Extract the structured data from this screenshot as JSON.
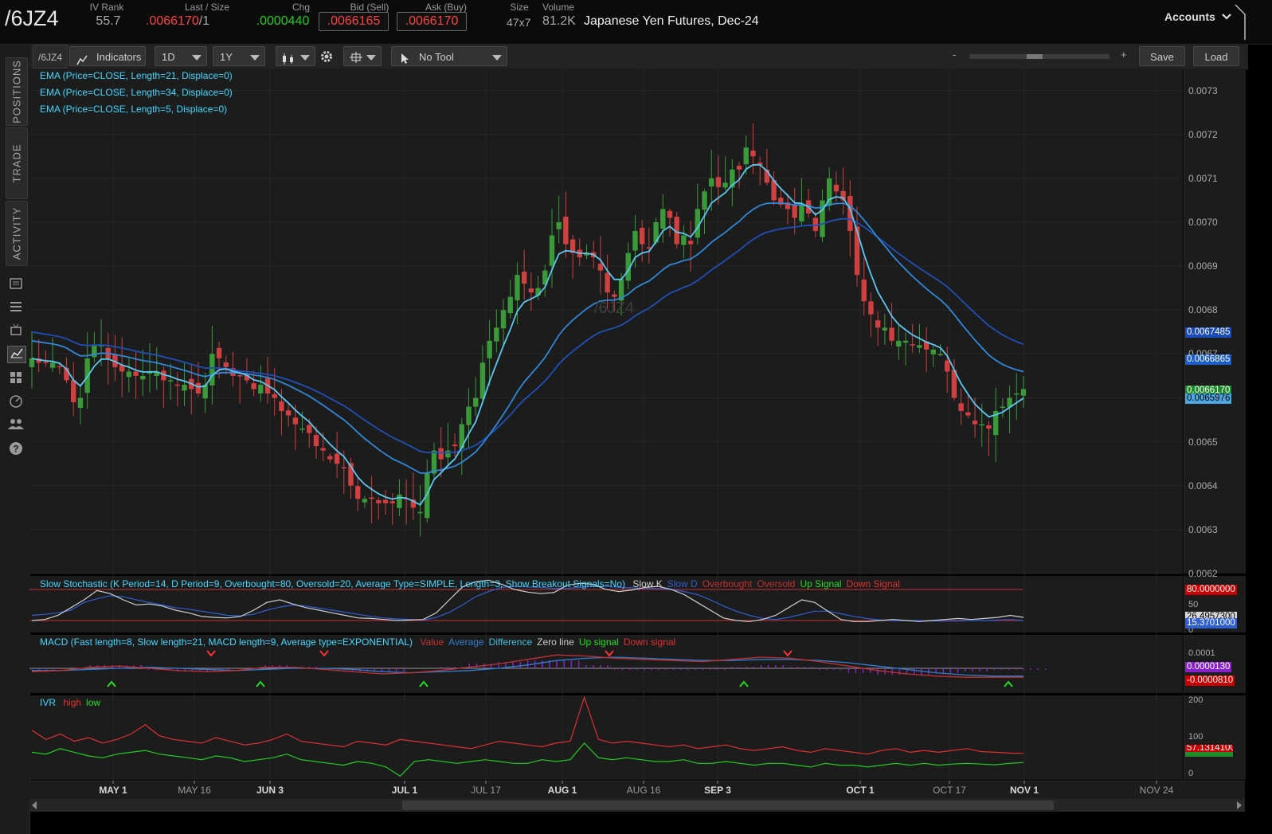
{
  "header": {
    "symbol": "/6JZ4",
    "iv_rank_label": "IV Rank",
    "iv_rank_value": "55.7",
    "last_label": "Last / Size",
    "last_value": ".0066170",
    "last_size": "/1",
    "chg_label": "Chg",
    "chg_value": ".0000440",
    "bid_label": "Bid (Sell)",
    "bid_value": ".0066165",
    "ask_label": "Ask (Buy)",
    "ask_value": ".0066170",
    "size_label": "Size",
    "size_value": "47x7",
    "volume_label": "Volume",
    "volume_value": "81.2K",
    "description": "Japanese Yen Futures, Dec-24",
    "accounts_label": "Accounts"
  },
  "sidebar": {
    "tabs": [
      "POSITIONS",
      "TRADE",
      "ACTIVITY"
    ]
  },
  "toolbar": {
    "symbol_tag": "/6JZ4",
    "indicators_label": "Indicators",
    "aggregation": "1D",
    "timeframe": "1Y",
    "tool_label": "No Tool",
    "zoom_minus": "-",
    "zoom_plus": "+",
    "save_label": "Save",
    "load_label": "Load"
  },
  "price_pane": {
    "studies": [
      "EMA (Price=CLOSE, Length=21, Displace=0)",
      "EMA (Price=CLOSE, Length=34, Displace=0)",
      "EMA (Price=CLOSE, Length=5, Displace=0)"
    ],
    "watermark": "/6JZ4",
    "axis_ticks": [
      "0.0073",
      "0.0072",
      "0.0071",
      "0.0070",
      "0.0069",
      "0.0068",
      "0.0067",
      "0.0066",
      "0.0065",
      "0.0064",
      "0.0063",
      "0.0062"
    ],
    "price_labels": [
      {
        "text": "0.0067485",
        "bg": "#1b4bb8",
        "fg": "#ffffff"
      },
      {
        "text": "0.0066865",
        "bg": "#1b5ec9",
        "fg": "#ffffff"
      },
      {
        "text": "0.0066170",
        "bg": "#1e8c2b",
        "fg": "#ffffff"
      },
      {
        "text": "0.0065976",
        "bg": "#4aa7e0",
        "fg": "#000000"
      }
    ]
  },
  "stochastic_pane": {
    "title": "Slow Stochastic (K Period=14, D Period=9, Overbought=80, Oversold=20, Average Type=SIMPLE, Length=3, Show Breakout Signals=No)",
    "legend": [
      {
        "text": "Slow K",
        "color": "#d0d0d0"
      },
      {
        "text": "Slow D",
        "color": "#2f5fd0"
      },
      {
        "text": "Overbought",
        "color": "#c43030"
      },
      {
        "text": "Oversold",
        "color": "#c43030"
      },
      {
        "text": "Up Signal",
        "color": "#22dd22"
      },
      {
        "text": "Down Signal",
        "color": "#e03030"
      }
    ],
    "axis_ticks": [
      "50",
      "0"
    ],
    "labels": [
      {
        "text": "80.0000000",
        "bg": "#cc0000",
        "fg": "#ffffff"
      },
      {
        "text": "26.4957300",
        "bg": "#d8d8d8",
        "fg": "#000000"
      },
      {
        "text": "15.3701000",
        "bg": "#2f5fd0",
        "fg": "#ffffff"
      }
    ]
  },
  "macd_pane": {
    "title": "MACD (Fast length=8, Slow length=21, MACD length=9, Average type=EXPONENTIAL)",
    "legend": [
      {
        "text": "Value",
        "color": "#c43030"
      },
      {
        "text": "Average",
        "color": "#2f7fd0"
      },
      {
        "text": "Difference",
        "color": "#40c0e0"
      },
      {
        "text": "Zero line",
        "color": "#cccccc"
      },
      {
        "text": "Up signal",
        "color": "#22dd22"
      },
      {
        "text": "Down signal",
        "color": "#e03030"
      }
    ],
    "axis_ticks": [
      "0.0001"
    ],
    "labels": [
      {
        "text": "0.0000130",
        "bg": "#8a22cc",
        "fg": "#ffffff"
      },
      {
        "text": "-0.0000810",
        "bg": "#cc0000",
        "fg": "#ffffff"
      }
    ]
  },
  "ivr_pane": {
    "title": "IVR",
    "legend": [
      {
        "text": "high",
        "color": "#e03030"
      },
      {
        "text": "low",
        "color": "#22dd22"
      }
    ],
    "axis_ticks": [
      "200",
      "100",
      "0"
    ],
    "labels": [
      {
        "text": "57.1314100",
        "bg": "#cc0000",
        "fg": "#ffffff"
      },
      {
        "text": "",
        "bg": "#1e8c2b",
        "fg": "#ffffff"
      }
    ]
  },
  "x_axis": {
    "labels": [
      "MAY 1",
      "MAY 16",
      "JUN 3",
      "JUL 1",
      "JUL 17",
      "AUG 1",
      "AUG 16",
      "SEP 3",
      "OCT 1",
      "OCT 17",
      "NOV 1",
      "NOV 24"
    ],
    "bold": [
      true,
      false,
      true,
      true,
      false,
      true,
      false,
      true,
      true,
      false,
      true,
      false
    ]
  },
  "colors": {
    "up_candle": "#3a9a3a",
    "down_candle": "#d04040",
    "ema5": "#5ac8f0",
    "ema21": "#2f88d8",
    "ema34": "#1f4fb8",
    "accent_green": "#22dd22",
    "accent_red": "#ff3333"
  },
  "chart_data": [
    {
      "type": "candlestick",
      "title": "/6JZ4",
      "y_range": [
        0.0062,
        0.00735
      ],
      "x_labels": [
        "MAY 1",
        "MAY 16",
        "JUN 3",
        "JUL 1",
        "JUL 17",
        "AUG 1",
        "AUG 16",
        "SEP 3",
        "OCT 1",
        "OCT 17",
        "NOV 1",
        "NOV 24"
      ],
      "closes": [
        0.00669,
        0.00668,
        0.00668,
        0.00668,
        0.00667,
        0.00664,
        0.00659,
        0.0066,
        0.00669,
        0.00672,
        0.00672,
        0.00669,
        0.00667,
        0.00666,
        0.00666,
        0.00665,
        0.00665,
        0.00666,
        0.00666,
        0.00664,
        0.00664,
        0.00663,
        0.00663,
        0.00662,
        0.00661,
        0.00663,
        0.0067,
        0.00669,
        0.00667,
        0.00665,
        0.00665,
        0.00664,
        0.00662,
        0.00663,
        0.00661,
        0.0066,
        0.00657,
        0.00656,
        0.00654,
        0.00653,
        0.00652,
        0.00649,
        0.00648,
        0.00646,
        0.00645,
        0.00644,
        0.0064,
        0.00637,
        0.00637,
        0.00637,
        0.00636,
        0.00636,
        0.00636,
        0.00638,
        0.00637,
        0.00635,
        0.00634,
        0.00643,
        0.00648,
        0.00646,
        0.00648,
        0.00649,
        0.00654,
        0.00658,
        0.0066,
        0.00668,
        0.00673,
        0.00676,
        0.0068,
        0.00683,
        0.00688,
        0.00686,
        0.00684,
        0.00685,
        0.00689,
        0.00697,
        0.007,
        0.00695,
        0.00693,
        0.00692,
        0.00693,
        0.00692,
        0.00689,
        0.00684,
        0.00683,
        0.00687,
        0.00693,
        0.00698,
        0.00695,
        0.00694,
        0.007,
        0.00703,
        0.00701,
        0.00695,
        0.00697,
        0.00695,
        0.00703,
        0.00707,
        0.0071,
        0.00708,
        0.00709,
        0.00712,
        0.00712,
        0.00717,
        0.00715,
        0.00713,
        0.00709,
        0.00705,
        0.00704,
        0.00703,
        0.00701,
        0.00704,
        0.00702,
        0.00698,
        0.00705,
        0.0071,
        0.00707,
        0.00705,
        0.00698,
        0.00688,
        0.00682,
        0.00679,
        0.00676,
        0.00676,
        0.00673,
        0.00673,
        0.00673,
        0.00672,
        0.00672,
        0.00671,
        0.00671,
        0.0067,
        0.00666,
        0.0066,
        0.00657,
        0.00656,
        0.00654,
        0.00654,
        0.00653,
        0.00657,
        0.00658,
        0.0066,
        0.00661,
        0.00662
      ],
      "series": [
        {
          "name": "EMA (Price=CLOSE, Length=5, Displace=0)",
          "last": 0.0065976
        },
        {
          "name": "EMA (Price=CLOSE, Length=21, Displace=0)",
          "last": 0.0066865
        },
        {
          "name": "EMA (Price=CLOSE, Length=34, Displace=0)",
          "last": 0.0067485
        }
      ],
      "last_price": 0.006617
    },
    {
      "type": "line",
      "title": "Slow Stochastic (K Period=14, D Period=9, Overbought=80, Oversold=20, Average Type=SIMPLE, Length=3, Show Breakout Signals=No)",
      "y_range": [
        0,
        100
      ],
      "overbought": 80,
      "oversold": 20,
      "slow_k": [
        20,
        22,
        30,
        45,
        60,
        78,
        72,
        60,
        50,
        52,
        48,
        40,
        35,
        28,
        26,
        25,
        28,
        40,
        55,
        60,
        52,
        45,
        40,
        35,
        30,
        25,
        24,
        22,
        20,
        21,
        22,
        35,
        60,
        85,
        95,
        98,
        90,
        80,
        75,
        72,
        74,
        88,
        92,
        90,
        80,
        76,
        79,
        84,
        86,
        80,
        70,
        55,
        40,
        25,
        20,
        18,
        22,
        30,
        45,
        60,
        55,
        38,
        22,
        18,
        18,
        20,
        22,
        20,
        18,
        20,
        22,
        24,
        22,
        24,
        26,
        30,
        26
      ],
      "slow_d": [
        30,
        32,
        35,
        40,
        55,
        62,
        68,
        66,
        60,
        55,
        50,
        45,
        42,
        38,
        34,
        30,
        29,
        32,
        40,
        46,
        50,
        48,
        44,
        40,
        36,
        32,
        28,
        25,
        23,
        22,
        21,
        26,
        36,
        50,
        66,
        76,
        84,
        86,
        85,
        84,
        82,
        82,
        84,
        86,
        86,
        84,
        83,
        82,
        82,
        80,
        76,
        70,
        60,
        48,
        38,
        30,
        24,
        22,
        26,
        32,
        38,
        38,
        33,
        28,
        24,
        21,
        20,
        20,
        20,
        19,
        19,
        19,
        20,
        20,
        21,
        22,
        20
      ]
    },
    {
      "type": "line",
      "title": "MACD (Fast length=8, Slow length=21, MACD length=9, Average type=EXPONENTIAL)",
      "value": [
        -3e-05,
        -2e-05,
        1e-05,
        2e-05,
        0.0,
        -2e-05,
        -3e-05,
        -2e-05,
        1e-05,
        1e-05,
        -1e-05,
        -3e-05,
        -5e-05,
        -4e-05,
        -2e-05,
        1e-05,
        4e-05,
        8e-05,
        0.00012,
        0.00011,
        9e-05,
        8e-05,
        7e-05,
        6e-05,
        8e-05,
        0.0001,
        9e-05,
        6e-05,
        2e-05,
        -2e-05,
        -5e-05,
        -7e-05,
        -8e-05,
        -8e-05,
        -8e-05
      ],
      "average": [
        -2e-05,
        -2e-05,
        -1e-05,
        0.0,
        1e-05,
        0.0,
        -1e-05,
        -2e-05,
        -1e-05,
        0.0,
        0.0,
        -1e-05,
        -3e-05,
        -4e-05,
        -3e-05,
        -2e-05,
        0.0,
        3e-05,
        7e-05,
        9e-05,
        0.0001,
        9e-05,
        8e-05,
        7e-05,
        7e-05,
        8e-05,
        8e-05,
        7e-05,
        5e-05,
        2e-05,
        -1e-05,
        -4e-05,
        -6e-05,
        -7e-05,
        -7e-05
      ],
      "last_value": -8.1e-05,
      "last_difference": 1.3e-05
    },
    {
      "type": "line",
      "title": "IVR",
      "y_range": [
        -15,
        215
      ],
      "high": [
        120,
        95,
        110,
        90,
        100,
        85,
        95,
        110,
        135,
        105,
        95,
        90,
        85,
        100,
        90,
        80,
        85,
        95,
        110,
        90,
        85,
        80,
        75,
        90,
        85,
        80,
        95,
        90,
        85,
        80,
        75,
        70,
        80,
        90,
        85,
        80,
        75,
        85,
        90,
        210,
        95,
        85,
        90,
        85,
        80,
        75,
        80,
        70,
        75,
        80,
        70,
        65,
        70,
        75,
        65,
        60,
        70,
        65,
        60,
        55,
        65,
        70,
        60,
        65,
        60,
        65,
        70,
        62,
        60,
        58,
        57
      ],
      "low": [
        60,
        55,
        70,
        60,
        50,
        45,
        55,
        60,
        65,
        55,
        50,
        45,
        40,
        50,
        45,
        35,
        40,
        45,
        55,
        40,
        35,
        30,
        25,
        35,
        30,
        20,
        -5,
        35,
        40,
        35,
        30,
        35,
        40,
        35,
        30,
        30,
        40,
        35,
        40,
        85,
        45,
        40,
        45,
        40,
        35,
        35,
        40,
        30,
        30,
        35,
        30,
        25,
        30,
        30,
        25,
        20,
        30,
        25,
        25,
        20,
        25,
        30,
        25,
        30,
        25,
        28,
        30,
        28,
        26,
        30,
        32
      ],
      "last_high": 57.13141
    }
  ]
}
